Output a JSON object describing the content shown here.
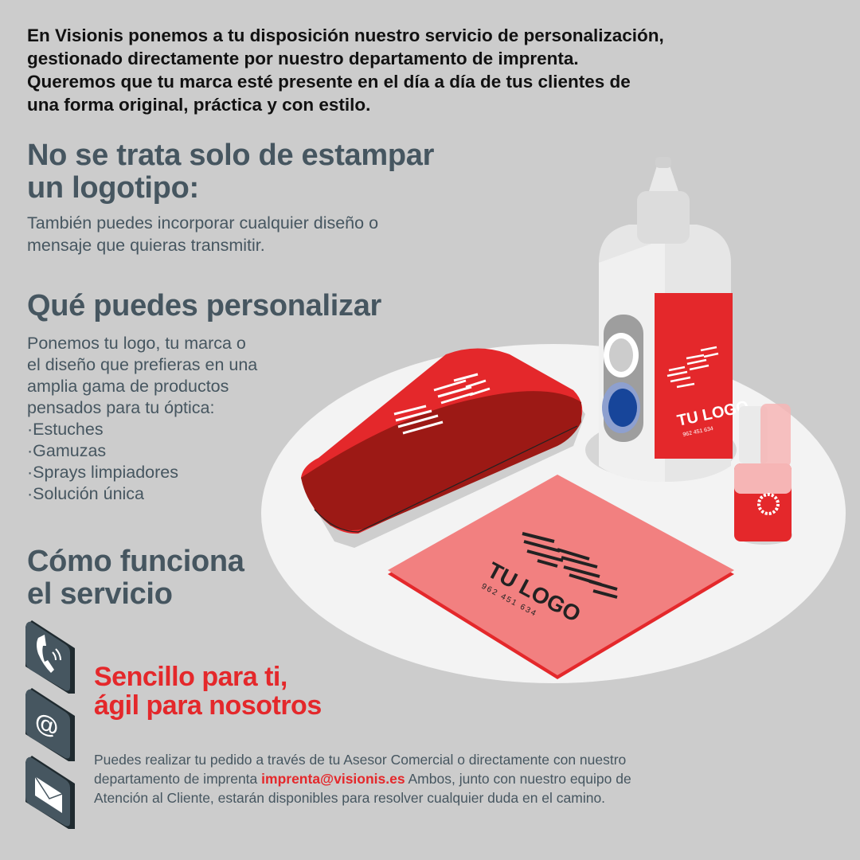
{
  "intro": {
    "lines": [
      "En Visionis ponemos a tu disposición nuestro servicio de personalización,",
      "gestionado directamente por nuestro departamento de imprenta.",
      "Queremos que tu marca esté presente en el día a día de tus clientes de",
      "una forma original, práctica y con estilo."
    ]
  },
  "section1": {
    "title_lines": [
      "No se trata solo de estampar",
      "un logotipo:"
    ],
    "body_lines": [
      "También puedes incorporar cualquier diseño o",
      "mensaje que quieras transmitir."
    ]
  },
  "section2": {
    "title": "Qué puedes personalizar",
    "body_lines": [
      "Ponemos tu logo, tu marca o",
      "el diseño que prefieras en una",
      "amplia gama de productos",
      "pensados para tu óptica:"
    ],
    "items": [
      "·Estuches",
      "·Gamuzas",
      "·Sprays limpiadores",
      "·Solución única"
    ]
  },
  "section3": {
    "title_lines": [
      "Cómo funciona",
      "el servicio"
    ],
    "tagline_lines": [
      "Sencillo para ti,",
      "ágil para nosotros"
    ],
    "body_part1": "Puedes realizar tu pedido a través de tu  Asesor Comercial o directamente con nuestro departamento de imprenta ",
    "email": "imprenta@visionis.es",
    "body_part2": "  Ambos, junto con nuestro equipo de Atención al Cliente, estarán disponibles  para resolver cualquier duda en el camino.",
    "icons": [
      "phone-icon",
      "at-sign-icon",
      "envelope-icon"
    ]
  },
  "illustration": {
    "logo_text": "TU LOGO",
    "logo_phone": "962 451 634"
  },
  "colors": {
    "background": "#cccccc",
    "heading": "#465660",
    "accent_red": "#e4282b",
    "cloth_pink": "#f28080",
    "icon_tile": "#465660"
  }
}
